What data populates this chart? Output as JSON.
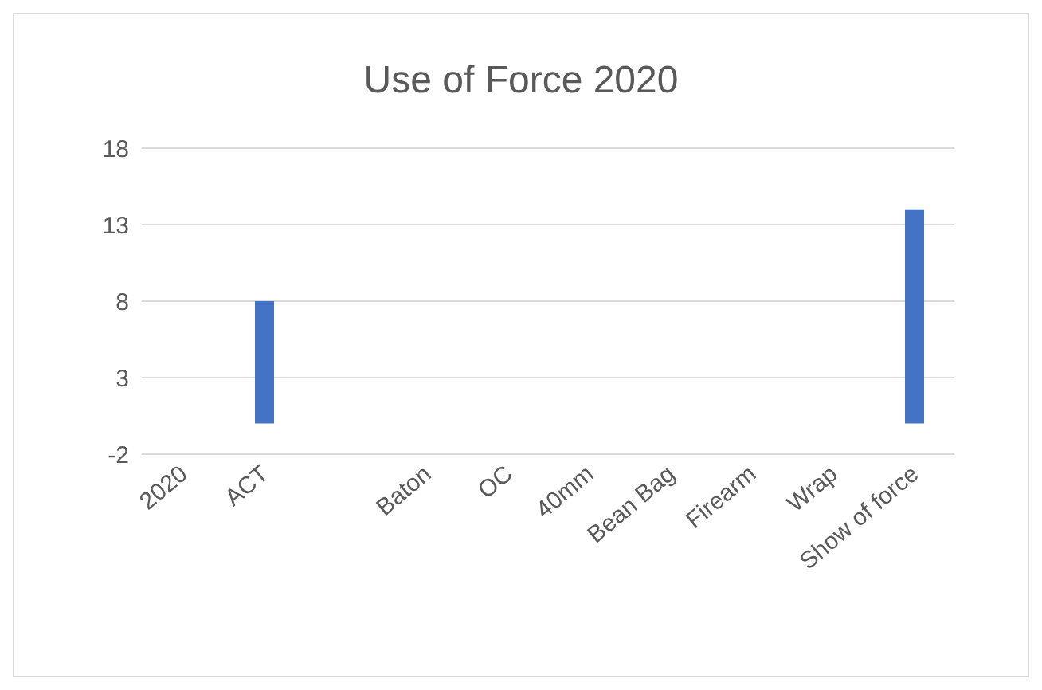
{
  "chart_data": {
    "type": "bar",
    "title": "Use of Force 2020",
    "categories": [
      "2020",
      "ACT",
      null,
      "Baton",
      "OC",
      "40mm",
      "Bean Bag",
      "Firearm",
      "Wrap",
      "Show of force"
    ],
    "values": [
      0,
      8,
      0,
      0,
      0,
      0,
      0,
      0,
      0,
      14
    ],
    "color": "#4472c4",
    "ylim": [
      -2,
      18
    ],
    "yticks": [
      -2,
      3,
      8,
      13,
      18
    ],
    "grid": "y"
  }
}
